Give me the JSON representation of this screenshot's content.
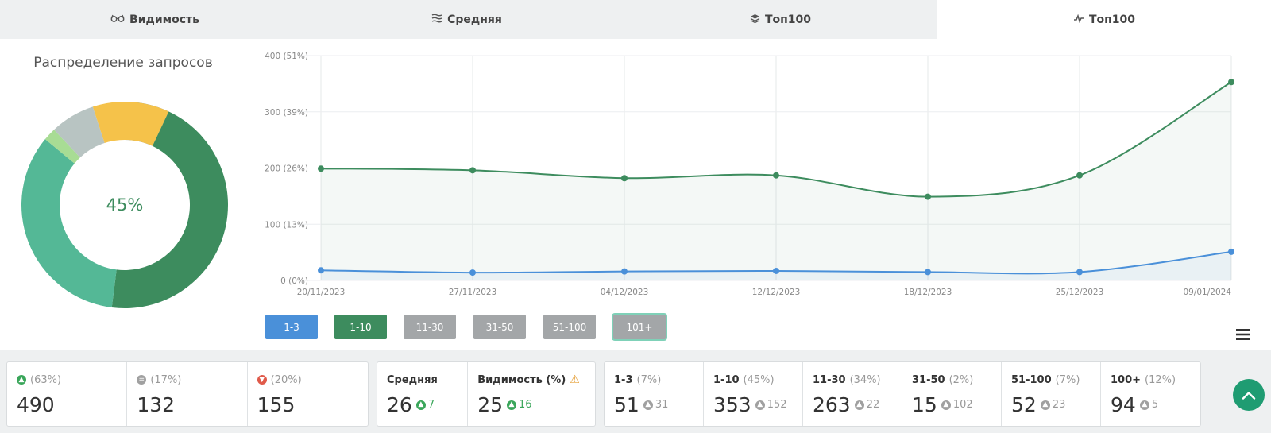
{
  "tabs": [
    {
      "label": "Видимость",
      "icon": "glasses-icon",
      "active": false
    },
    {
      "label": "Средняя",
      "icon": "lines-icon",
      "active": false
    },
    {
      "label": "Топ100",
      "icon": "layers-icon",
      "active": false
    },
    {
      "label": "Топ100",
      "icon": "activity-icon",
      "active": true
    }
  ],
  "distribution": {
    "title": "Распределение запросов",
    "center_label": "45%",
    "segments": [
      {
        "name": "1-3",
        "fraction": 0.07,
        "color": "#4a90d9"
      },
      {
        "name": "1-10",
        "fraction": 0.45,
        "color": "#3d8c5e"
      },
      {
        "name": "11-30",
        "fraction": 0.34,
        "color": "#54b896"
      },
      {
        "name": "31-50",
        "fraction": 0.02,
        "color": "#a8dc94"
      },
      {
        "name": "51-100",
        "fraction": 0.07,
        "color": "#b8c4c2"
      },
      {
        "name": "101+",
        "fraction": 0.12,
        "color": "#f5c24a"
      }
    ]
  },
  "chart_data": {
    "type": "line",
    "x": [
      "20/11/2023",
      "27/11/2023",
      "04/12/2023",
      "12/12/2023",
      "18/12/2023",
      "25/12/2023",
      "09/01/2024"
    ],
    "y_ticks": [
      "0 (0%)",
      "100 (13%)",
      "200 (26%)",
      "300 (39%)",
      "400 (51%)"
    ],
    "ylim": [
      0,
      400
    ],
    "grid": true,
    "series": [
      {
        "name": "1-10",
        "color": "#3d8c5e",
        "values": [
          199,
          196,
          182,
          187,
          149,
          187,
          353
        ]
      },
      {
        "name": "1-3",
        "color": "#4a90d9",
        "values": [
          18,
          14,
          16,
          17,
          15,
          15,
          51
        ]
      }
    ],
    "legend": [
      {
        "label": "1-3",
        "color": "#4a90d9"
      },
      {
        "label": "1-10",
        "color": "#3d8c5e"
      },
      {
        "label": "11-30",
        "color": "#a3a6a8"
      },
      {
        "label": "31-50",
        "color": "#a3a6a8"
      },
      {
        "label": "51-100",
        "color": "#a3a6a8"
      },
      {
        "label": "101+",
        "color": "#a3a6a8",
        "outlined": true
      }
    ]
  },
  "stats": {
    "up": {
      "pct": "(63%)",
      "value": "490"
    },
    "same": {
      "pct": "(17%)",
      "value": "132"
    },
    "down": {
      "pct": "(20%)",
      "value": "155"
    },
    "avg": {
      "label": "Средняя",
      "value": "26",
      "delta": "7"
    },
    "visibility": {
      "label": "Видимость (%)",
      "value": "25",
      "delta": "16"
    },
    "ranges": [
      {
        "label": "1-3",
        "pct": "(7%)",
        "value": "51",
        "delta": "31"
      },
      {
        "label": "1-10",
        "pct": "(45%)",
        "value": "353",
        "delta": "152"
      },
      {
        "label": "11-30",
        "pct": "(34%)",
        "value": "263",
        "delta": "22"
      },
      {
        "label": "31-50",
        "pct": "(2%)",
        "value": "15",
        "delta": "102"
      },
      {
        "label": "51-100",
        "pct": "(7%)",
        "value": "52",
        "delta": "23"
      },
      {
        "label": "100+",
        "pct": "(12%)",
        "value": "94",
        "delta": "5"
      }
    ]
  }
}
